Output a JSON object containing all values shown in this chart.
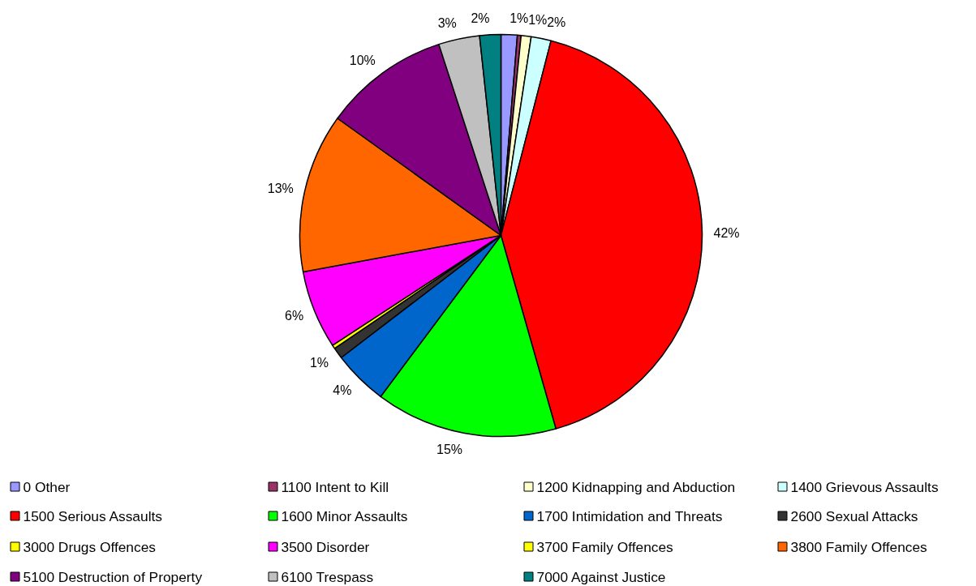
{
  "chart_data": {
    "type": "pie",
    "categories": [
      "0 Other",
      "1100 Intent to Kill",
      "1200 Kidnapping and Abduction",
      "1400 Grievous Assaults",
      "1500 Serious Assaults",
      "1600 Minor Assaults",
      "1700 Intimidation and Threats",
      "2600 Sexual Attacks",
      "3000 Drugs Offences",
      "3500 Disorder",
      "3700 Family Offences",
      "3800 Family Offences",
      "5100 Destruction of Property",
      "6100 Trespass",
      "7000 Against Justice"
    ],
    "values": [
      1.3,
      0.3,
      0.8,
      1.6,
      41.6,
      14.6,
      4.4,
      0.9,
      0.3,
      6.3,
      0,
      12.8,
      10.1,
      3.3,
      1.7
    ],
    "value_labels": [
      "1%",
      null,
      "1%",
      "2%",
      "42%",
      "15%",
      "4%",
      "1%",
      null,
      "6%",
      null,
      "13%",
      "10%",
      "3%",
      "2%"
    ],
    "colors": [
      "#9999ff",
      "#993366",
      "#ffffcc",
      "#ccffff",
      "#ff0000",
      "#00ff00",
      "#0066cc",
      "#333333",
      "#ffff00",
      "#ff00ff",
      "#ffff00",
      "#ff6600",
      "#800080",
      "#c0c0c0",
      "#008080"
    ],
    "legend": "bottom"
  }
}
